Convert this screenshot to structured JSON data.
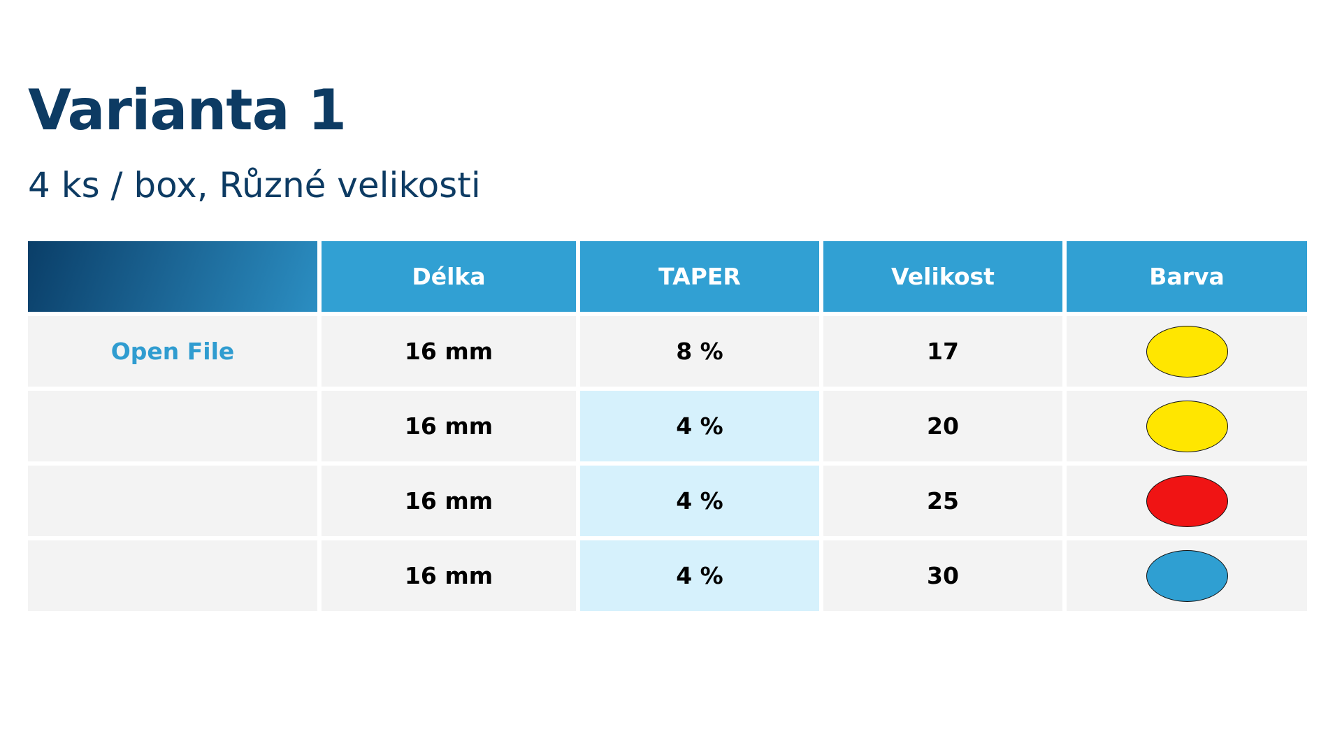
{
  "title": "Varianta 1",
  "subtitle": "4 ks / box, Různé velikosti",
  "table": {
    "headers": [
      "",
      "Délka",
      "TAPER",
      "Velikost",
      "Barva"
    ],
    "open_file_label": "Open File",
    "rows": [
      {
        "delka": "16 mm",
        "taper": "8 %",
        "velikost": "17",
        "barva": "yellow",
        "barva_hex": "#ffe600"
      },
      {
        "delka": "16 mm",
        "taper": "4 %",
        "velikost": "20",
        "barva": "yellow",
        "barva_hex": "#ffe600"
      },
      {
        "delka": "16 mm",
        "taper": "4 %",
        "velikost": "25",
        "barva": "red",
        "barva_hex": "#f01414"
      },
      {
        "delka": "16 mm",
        "taper": "4 %",
        "velikost": "30",
        "barva": "blue",
        "barva_hex": "#2f9fd2"
      }
    ]
  },
  "colors": {
    "title": "#0d3b63",
    "header": "#31a0d3",
    "header_gradient_start": "#0a3e68",
    "header_gradient_end": "#2b8ec2",
    "cell_bg": "#f3f3f3",
    "highlight_bg": "#d6f1fc",
    "link": "#2f9cd0"
  }
}
